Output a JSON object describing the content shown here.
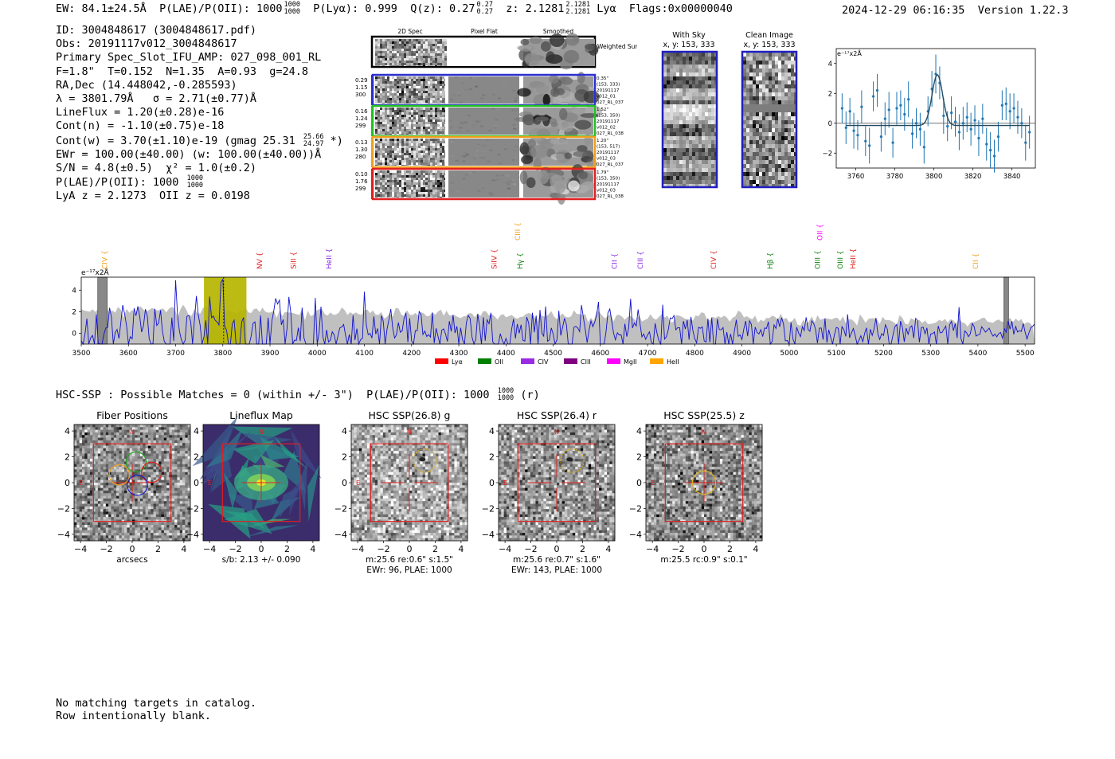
{
  "header": {
    "ew": "EW: 84.1±24.5Å",
    "plae_label": "P(LAE)/P(OII): 1000",
    "plae_hi": "1000",
    "plae_lo": "1000",
    "plya": "P(Lyα): 0.999",
    "qz_label": "Q(z): 0.27",
    "qz_hi": "0.27",
    "qz_lo": "0.27",
    "z_label": "z: 2.1281",
    "z_hi": "2.1281",
    "z_lo": "2.1281",
    "z_line": "Lyα",
    "flags": "Flags:0x00000040",
    "datetime": "2024-12-29 06:16:35",
    "version": "Version 1.22.3"
  },
  "info": {
    "id": "ID: 3004848617 (3004848617.pdf)",
    "obs": "Obs: 20191117v012_3004848617",
    "primary": "Primary Spec_Slot_IFU_AMP: 027_098_001_RL",
    "fit": "F=1.8\"  T=0.152  N=1.35  A=0.93  g=24.8",
    "radec": "RA,Dec (14.448042,-0.285593)",
    "lambda": "λ = 3801.79Å   σ = 2.71(±0.77)Å",
    "lineflux": "LineFlux = 1.20(±0.28)e-16",
    "contn": "Cont(n) = -1.10(±0.75)e-18",
    "contw": "Cont(w) = 3.70(±1.10)e-19 (gmag 25.31",
    "contw_hi": "25.66",
    "contw_lo": "24.97",
    "contw_end": "*)",
    "ewr": "EWr = 100.00(±40.00) (w: 100.00(±40.00))Å",
    "sn": "S/N = 4.8(±0.5)  χ² = 1.0(±0.2)",
    "plae": "P(LAE)/P(OII): 1000",
    "plae_hi": "1000",
    "plae_lo": "1000",
    "z": "LyA z = 2.1273  OII z = 0.0198"
  },
  "cutouts": {
    "col_2d": "2D Spec",
    "col_flat": "Pixel Flat",
    "col_smooth": "Smoothed",
    "weighted": "Weighted Sum",
    "rows": [
      {
        "color": "#2a2fd0",
        "left": [
          "0.29",
          "1.15",
          "300"
        ],
        "right": [
          "0.35\"",
          "(153, 333)",
          "20191117",
          "v012_01",
          "027_RL_037"
        ]
      },
      {
        "color": "#22c022",
        "left": [
          "0.16",
          "1.24",
          "299"
        ],
        "right": [
          "1.52\"",
          "(153, 350)",
          "20191117",
          "v012_02",
          "027_RL_038"
        ]
      },
      {
        "color": "#f0a020",
        "left": [
          "0.13",
          "1.30",
          "280"
        ],
        "right": [
          "1.20\"",
          "(153, 517)",
          "20191117",
          "v012_03",
          "027_RL_037"
        ]
      },
      {
        "color": "#e02020",
        "left": [
          "0.10",
          "1.76",
          "299"
        ],
        "right": [
          "1.79\"",
          "(153, 350)",
          "20191117",
          "v012_03",
          "027_RL_038"
        ]
      }
    ]
  },
  "sky": {
    "with_sky_title": "With Sky",
    "with_sky_coord": "x, y: 153, 333",
    "clean_title": "Clean Image",
    "clean_coord": "x, y: 153, 333"
  },
  "zoom_chart": {
    "type": "scatter",
    "unit_label": "e⁻¹⁷x2Å",
    "xlim": [
      3750,
      3852
    ],
    "ylim": [
      -3.0,
      5.0
    ],
    "xticks": [
      3760,
      3780,
      3800,
      3820,
      3840
    ],
    "yticks": [
      -2,
      0,
      2,
      4
    ],
    "points": [
      [
        3753,
        1.0,
        1.0
      ],
      [
        3755,
        -0.3,
        1.1
      ],
      [
        3757,
        0.8,
        0.9
      ],
      [
        3759,
        -0.5,
        1.2
      ],
      [
        3761,
        -0.8,
        1.0
      ],
      [
        3763,
        1.1,
        1.1
      ],
      [
        3765,
        -1.2,
        1.0
      ],
      [
        3767,
        -1.5,
        1.2
      ],
      [
        3769,
        1.8,
        1.0
      ],
      [
        3771,
        2.2,
        1.1
      ],
      [
        3773,
        -0.9,
        1.0
      ],
      [
        3775,
        0.3,
        1.1
      ],
      [
        3777,
        0.9,
        1.2
      ],
      [
        3779,
        -1.3,
        1.0
      ],
      [
        3781,
        1.0,
        1.1
      ],
      [
        3783,
        1.2,
        1.0
      ],
      [
        3785,
        0.6,
        1.1
      ],
      [
        3787,
        1.6,
        1.2
      ],
      [
        3789,
        -0.7,
        1.0
      ],
      [
        3791,
        0.0,
        1.0
      ],
      [
        3793,
        -0.4,
        1.1
      ],
      [
        3795,
        -1.6,
        1.1
      ],
      [
        3797,
        0.8,
        1.0
      ],
      [
        3799,
        2.3,
        1.2
      ],
      [
        3801,
        3.3,
        1.3
      ],
      [
        3803,
        2.7,
        1.1
      ],
      [
        3805,
        0.5,
        1.2
      ],
      [
        3807,
        -0.2,
        1.0
      ],
      [
        3809,
        0.7,
        1.1
      ],
      [
        3811,
        0.1,
        1.0
      ],
      [
        3813,
        -0.6,
        1.2
      ],
      [
        3815,
        0.0,
        1.1
      ],
      [
        3817,
        0.4,
        1.0
      ],
      [
        3819,
        -0.4,
        1.1
      ],
      [
        3821,
        0.2,
        1.0
      ],
      [
        3823,
        -1.0,
        1.2
      ],
      [
        3825,
        0.3,
        1.0
      ],
      [
        3827,
        -1.4,
        1.1
      ],
      [
        3829,
        -1.8,
        1.2
      ],
      [
        3831,
        -2.2,
        1.1
      ],
      [
        3833,
        -0.9,
        1.0
      ],
      [
        3835,
        1.2,
        1.0
      ],
      [
        3837,
        1.3,
        1.1
      ],
      [
        3839,
        0.8,
        1.2
      ],
      [
        3841,
        1.0,
        1.0
      ],
      [
        3843,
        0.4,
        1.1
      ],
      [
        3845,
        0.0,
        1.0
      ],
      [
        3847,
        -1.3,
        1.2
      ],
      [
        3849,
        -0.6,
        1.1
      ]
    ],
    "fit": {
      "center": 3801.79,
      "sigma": 2.71,
      "amplitude": 3.4,
      "baseline": -0.15
    }
  },
  "chart_data": {
    "type": "line",
    "title": "",
    "xlabel": "",
    "ylabel": "e⁻¹⁷x2Å",
    "xlim": [
      3500,
      5520
    ],
    "ylim": [
      -1.0,
      5.2
    ],
    "xticks": [
      3500,
      3600,
      3700,
      3800,
      3900,
      4000,
      4100,
      4200,
      4300,
      4400,
      4500,
      4600,
      4700,
      4800,
      4900,
      5000,
      5100,
      5200,
      5300,
      5400,
      5500
    ],
    "yticks": [
      0,
      2,
      4
    ],
    "highlight_range": [
      3760,
      3850
    ],
    "detection_line": 3801.79,
    "masked_ranges": [
      [
        3535,
        3555
      ],
      [
        5455,
        5465
      ]
    ],
    "series": [
      {
        "name": "spectrum",
        "color": "#1010d0",
        "x_step": 4,
        "seed": 7,
        "noise_start": 2.3,
        "noise_end": 0.8
      },
      {
        "name": "error",
        "color": "#c0c0c0",
        "level_start": 2.2,
        "level_end": 1.0
      }
    ],
    "line_markers": [
      {
        "name": "CIV",
        "wave": 3550,
        "color": "#f0a020"
      },
      {
        "name": "NV",
        "wave": 3878,
        "color": "#e02020"
      },
      {
        "name": "SiII",
        "wave": 3950,
        "color": "#e02020"
      },
      {
        "name": "HeII",
        "wave": 4025,
        "color": "#8a2be2"
      },
      {
        "name": "SiIV",
        "wave": 4375,
        "color": "#e02020"
      },
      {
        "name": "CIII",
        "wave": 4425,
        "color": "#f0a020",
        "high": true
      },
      {
        "name": "Hγ",
        "wave": 4430,
        "color": "#108010"
      },
      {
        "name": "CII",
        "wave": 4630,
        "color": "#8a2be2"
      },
      {
        "name": "CIII",
        "wave": 4685,
        "color": "#8a2be2"
      },
      {
        "name": "CIV",
        "wave": 4840,
        "color": "#e02020"
      },
      {
        "name": "Hβ",
        "wave": 4960,
        "color": "#108010"
      },
      {
        "name": "OII",
        "wave": 5065,
        "color": "#ff00ff",
        "high": true
      },
      {
        "name": "OIII",
        "wave": 5060,
        "color": "#108010"
      },
      {
        "name": "OIII",
        "wave": 5108,
        "color": "#108010"
      },
      {
        "name": "HeII",
        "wave": 5135,
        "color": "#e02020"
      },
      {
        "name": "CII",
        "wave": 5395,
        "color": "#f0a020"
      }
    ],
    "legend": [
      {
        "label": "Lyα",
        "color": "#ff0000"
      },
      {
        "label": "OII",
        "color": "#008000"
      },
      {
        "label": "CIV",
        "color": "#9a2be2"
      },
      {
        "label": "CIII",
        "color": "#800080"
      },
      {
        "label": "MgII",
        "color": "#ff00ff"
      },
      {
        "label": "HeII",
        "color": "#ffa500"
      }
    ]
  },
  "hsc": {
    "summary": "HSC-SSP : Possible Matches = 0 (within +/- 3\")  P(LAE)/P(OII): 1000",
    "summary_hi": "1000",
    "summary_lo": "1000",
    "summary_end": "(r)",
    "panels": [
      {
        "title": "Fiber Positions",
        "caption1": "arcsecs",
        "caption2": "",
        "kind": "fiber"
      },
      {
        "title": "Lineflux Map",
        "caption1": "s/b: 2.13 +/- 0.090",
        "caption2": "",
        "kind": "flux"
      },
      {
        "title": "HSC SSP(26.8) g",
        "caption1": "m:25.6  re:0.6\"  s:1.5\"",
        "caption2": "EWr: 96, PLAE: 1000",
        "kind": "g"
      },
      {
        "title": "HSC SSP(26.4) r",
        "caption1": "m:25.6  re:0.7\"  s:1.6\"",
        "caption2": "EWr: 143, PLAE: 1000",
        "kind": "r"
      },
      {
        "title": "HSC SSP(25.5) z",
        "caption1": "m:25.5 rc:0.9\"  s:0.1\"",
        "caption2": "",
        "kind": "z"
      }
    ],
    "axis_ticks": [
      "−4",
      "−2",
      "0",
      "2",
      "4"
    ],
    "compass_n": "N",
    "compass_e": "E"
  },
  "footer": {
    "line1": "No matching targets in catalog.",
    "line2": "Row intentionally blank."
  }
}
